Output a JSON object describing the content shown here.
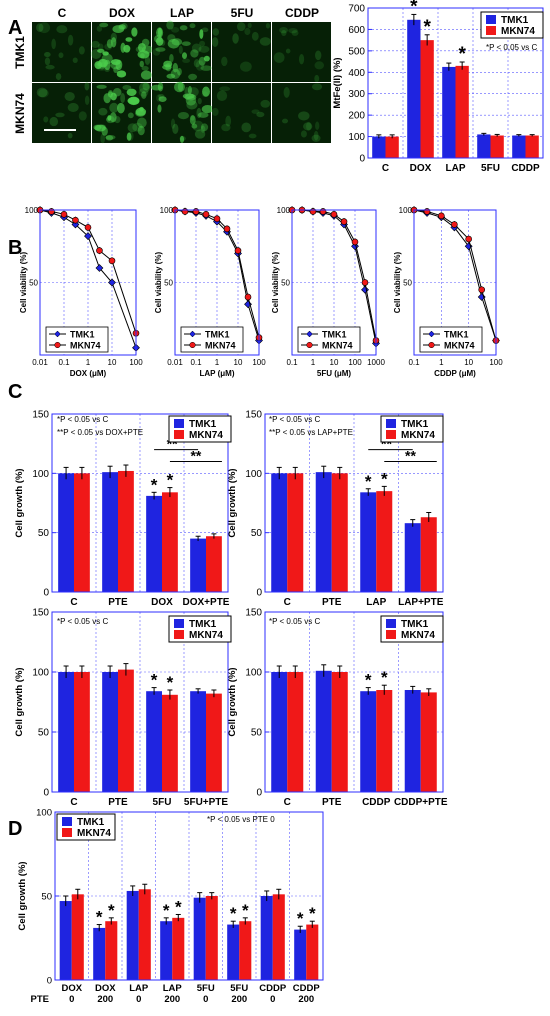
{
  "panel_letters": [
    "A",
    "B",
    "C",
    "D"
  ],
  "colors": {
    "series1": "#1f24e0",
    "series2": "#f01818",
    "frame": "#2d2dff",
    "grid": "#5a5aff",
    "micro_bg": "#062006",
    "micro_cell": "#4ccd4c"
  },
  "panelA": {
    "micrograph": {
      "columns": [
        "C",
        "DOX",
        "LAP",
        "5FU",
        "CDDP"
      ],
      "rows": [
        "TMK1",
        "MKN74"
      ],
      "intensity": [
        [
          0.15,
          0.95,
          0.85,
          0.12,
          0.1
        ],
        [
          0.12,
          0.9,
          0.7,
          0.1,
          0.1
        ]
      ]
    }
  },
  "chart_data": [
    {
      "id": "A-bar",
      "type": "bar",
      "categories": [
        "C",
        "DOX",
        "LAP",
        "5FU",
        "CDDP"
      ],
      "series": [
        {
          "name": "TMK1",
          "values": [
            100,
            645,
            425,
            110,
            105
          ],
          "errors": [
            8,
            25,
            18,
            5,
            4
          ]
        },
        {
          "name": "MKN74",
          "values": [
            100,
            550,
            430,
            105,
            105
          ],
          "errors": [
            8,
            25,
            18,
            5,
            4
          ]
        }
      ],
      "stars": [
        [
          0,
          1,
          0,
          0,
          0
        ],
        [
          0,
          1,
          1,
          0,
          0
        ]
      ],
      "star_text": "*",
      "ylabel": "MtFe(II) (%)",
      "ylim": [
        0,
        700
      ],
      "yticks": [
        "0",
        "100",
        "200",
        "300",
        "400",
        "500",
        "600",
        "700"
      ],
      "note": "*P < 0.05 vs C",
      "legend": "top-right"
    },
    {
      "id": "B-dox",
      "type": "line",
      "xscale": "log",
      "xticks": [
        "0.01",
        "0.1",
        "1",
        "10",
        "100"
      ],
      "xlabel": "DOX (μM)",
      "xlim": [
        0.01,
        100
      ],
      "ylabel": "Cell viability (%)",
      "ylim": [
        0,
        100
      ],
      "yticks": [
        "50",
        "100"
      ],
      "series": [
        {
          "name": "TMK1",
          "x": [
            0.01,
            0.03,
            0.1,
            0.3,
            1,
            3,
            10,
            100
          ],
          "y": [
            100,
            98,
            95,
            90,
            82,
            60,
            50,
            5
          ]
        },
        {
          "name": "MKN74",
          "x": [
            0.01,
            0.03,
            0.1,
            0.3,
            1,
            3,
            10,
            100
          ],
          "y": [
            100,
            99,
            97,
            93,
            88,
            72,
            65,
            15
          ]
        }
      ]
    },
    {
      "id": "B-lap",
      "type": "line",
      "xscale": "log",
      "xticks": [
        "0.01",
        "0.1",
        "1",
        "10",
        "100"
      ],
      "xlabel": "LAP (μM)",
      "xlim": [
        0.01,
        100
      ],
      "ylabel": "Cell viability (%)",
      "ylim": [
        0,
        100
      ],
      "yticks": [
        "50",
        "100"
      ],
      "series": [
        {
          "name": "TMK1",
          "x": [
            0.01,
            0.03,
            0.1,
            0.3,
            1,
            3,
            10,
            30,
            100
          ],
          "y": [
            100,
            99,
            98,
            96,
            92,
            85,
            70,
            35,
            10
          ]
        },
        {
          "name": "MKN74",
          "x": [
            0.01,
            0.03,
            0.1,
            0.3,
            1,
            3,
            10,
            30,
            100
          ],
          "y": [
            100,
            99,
            99,
            97,
            94,
            87,
            72,
            40,
            12
          ]
        }
      ]
    },
    {
      "id": "B-5fu",
      "type": "line",
      "xscale": "log",
      "xticks": [
        "0.1",
        "1",
        "10",
        "100",
        "1000"
      ],
      "xlabel": "5FU (μM)",
      "xlim": [
        0.1,
        1000
      ],
      "ylabel": "Cell viability (%)",
      "ylim": [
        0,
        100
      ],
      "yticks": [
        "50",
        "100"
      ],
      "series": [
        {
          "name": "TMK1",
          "x": [
            0.1,
            0.3,
            1,
            3,
            10,
            30,
            100,
            300,
            1000
          ],
          "y": [
            100,
            100,
            99,
            98,
            96,
            90,
            75,
            45,
            8
          ]
        },
        {
          "name": "MKN74",
          "x": [
            0.1,
            0.3,
            1,
            3,
            10,
            30,
            100,
            300,
            1000
          ],
          "y": [
            100,
            100,
            99,
            99,
            97,
            92,
            78,
            50,
            10
          ]
        }
      ]
    },
    {
      "id": "B-cddp",
      "type": "line",
      "xscale": "log",
      "xticks": [
        "0.1",
        "1",
        "10",
        "100"
      ],
      "xlabel": "CDDP (μM)",
      "xlim": [
        0.1,
        100
      ],
      "ylabel": "Cell viability (%)",
      "ylim": [
        0,
        100
      ],
      "yticks": [
        "50",
        "100"
      ],
      "series": [
        {
          "name": "TMK1",
          "x": [
            0.1,
            0.3,
            1,
            3,
            10,
            30,
            100
          ],
          "y": [
            100,
            98,
            95,
            88,
            75,
            40,
            10
          ]
        },
        {
          "name": "MKN74",
          "x": [
            0.1,
            0.3,
            1,
            3,
            10,
            30,
            100
          ],
          "y": [
            100,
            99,
            96,
            90,
            80,
            45,
            10
          ]
        }
      ]
    },
    {
      "id": "C-dox",
      "type": "bar",
      "categories": [
        "C",
        "PTE",
        "DOX",
        "DOX+PTE"
      ],
      "series": [
        {
          "name": "TMK1",
          "values": [
            100,
            101,
            81,
            45
          ],
          "errors": [
            5,
            5,
            3,
            2
          ]
        },
        {
          "name": "MKN74",
          "values": [
            100,
            102,
            84,
            47
          ],
          "errors": [
            5,
            5,
            4,
            2
          ]
        }
      ],
      "stars": [
        [
          0,
          0,
          1,
          0
        ],
        [
          0,
          0,
          1,
          0
        ]
      ],
      "star_text": "*",
      "brackets": [
        {
          "from": [
            2,
            0
          ],
          "to": [
            3,
            0
          ],
          "text": "**"
        },
        {
          "from": [
            2,
            1
          ],
          "to": [
            3,
            1
          ],
          "text": "**"
        }
      ],
      "ylabel": "Cell growth (%)",
      "ylim": [
        0,
        150
      ],
      "yticks": [
        "0",
        "50",
        "100",
        "150"
      ],
      "note": "*P < 0.05 vs C",
      "note2": "**P < 0.05 vs DOX+PTE"
    },
    {
      "id": "C-lap",
      "type": "bar",
      "categories": [
        "C",
        "PTE",
        "LAP",
        "LAP+PTE"
      ],
      "series": [
        {
          "name": "TMK1",
          "values": [
            100,
            101,
            84,
            58
          ],
          "errors": [
            5,
            5,
            3,
            3
          ]
        },
        {
          "name": "MKN74",
          "values": [
            100,
            100,
            85,
            63
          ],
          "errors": [
            5,
            5,
            4,
            4
          ]
        }
      ],
      "stars": [
        [
          0,
          0,
          1,
          0
        ],
        [
          0,
          0,
          1,
          0
        ]
      ],
      "star_text": "*",
      "brackets": [
        {
          "from": [
            2,
            0
          ],
          "to": [
            3,
            0
          ],
          "text": "**"
        },
        {
          "from": [
            2,
            1
          ],
          "to": [
            3,
            1
          ],
          "text": "**"
        }
      ],
      "ylabel": "Cell growth (%)",
      "ylim": [
        0,
        150
      ],
      "yticks": [
        "0",
        "50",
        "100",
        "150"
      ],
      "note": "*P < 0.05 vs C",
      "note2": "**P < 0.05 vs LAP+PTE"
    },
    {
      "id": "C-5fu",
      "type": "bar",
      "categories": [
        "C",
        "PTE",
        "5FU",
        "5FU+PTE"
      ],
      "series": [
        {
          "name": "TMK1",
          "values": [
            100,
            100,
            84,
            84
          ],
          "errors": [
            5,
            5,
            3,
            2
          ]
        },
        {
          "name": "MKN74",
          "values": [
            100,
            102,
            81,
            82
          ],
          "errors": [
            5,
            5,
            4,
            3
          ]
        }
      ],
      "stars": [
        [
          0,
          0,
          1,
          0
        ],
        [
          0,
          0,
          1,
          0
        ]
      ],
      "star_text": "*",
      "ylabel": "Cell growth (%)",
      "ylim": [
        0,
        150
      ],
      "yticks": [
        "0",
        "50",
        "100",
        "150"
      ],
      "note": "*P < 0.05 vs C"
    },
    {
      "id": "C-cddp",
      "type": "bar",
      "categories": [
        "C",
        "PTE",
        "CDDP",
        "CDDP+PTE"
      ],
      "series": [
        {
          "name": "TMK1",
          "values": [
            100,
            101,
            84,
            85
          ],
          "errors": [
            5,
            5,
            3,
            3
          ]
        },
        {
          "name": "MKN74",
          "values": [
            100,
            100,
            85,
            83
          ],
          "errors": [
            5,
            5,
            4,
            3
          ]
        }
      ],
      "stars": [
        [
          0,
          0,
          1,
          0
        ],
        [
          0,
          0,
          1,
          0
        ]
      ],
      "star_text": "*",
      "ylabel": "Cell growth (%)",
      "ylim": [
        0,
        150
      ],
      "yticks": [
        "0",
        "50",
        "100",
        "150"
      ],
      "note": "*P < 0.05 vs C"
    },
    {
      "id": "D",
      "type": "bar",
      "categories": [
        "DOX 0",
        "DOX 200",
        "LAP 0",
        "LAP 200",
        "5FU 0",
        "5FU 200",
        "CDDP 0",
        "CDDP 200"
      ],
      "cat_top": [
        "DOX",
        "DOX",
        "LAP",
        "LAP",
        "5FU",
        "5FU",
        "CDDP",
        "CDDP"
      ],
      "cat_bottom": [
        "0",
        "200",
        "0",
        "200",
        "0",
        "200",
        "0",
        "200"
      ],
      "row_label": "PTE",
      "series": [
        {
          "name": "TMK1",
          "values": [
            47,
            31,
            53,
            35,
            49,
            33,
            50,
            30
          ],
          "errors": [
            3,
            2,
            3,
            2,
            3,
            2,
            3,
            2
          ]
        },
        {
          "name": "MKN74",
          "values": [
            51,
            35,
            54,
            37,
            50,
            35,
            51,
            33
          ],
          "errors": [
            3,
            2,
            3,
            2,
            2,
            2,
            3,
            2
          ]
        }
      ],
      "stars": [
        [
          0,
          1,
          0,
          1,
          0,
          1,
          0,
          1
        ],
        [
          0,
          1,
          0,
          1,
          0,
          1,
          0,
          1
        ]
      ],
      "star_text": "*",
      "ylabel": "Cell growth (%)",
      "ylim": [
        0,
        100
      ],
      "yticks": [
        "0",
        "50",
        "100"
      ],
      "note": "*P < 0.05 vs PTE 0"
    }
  ]
}
